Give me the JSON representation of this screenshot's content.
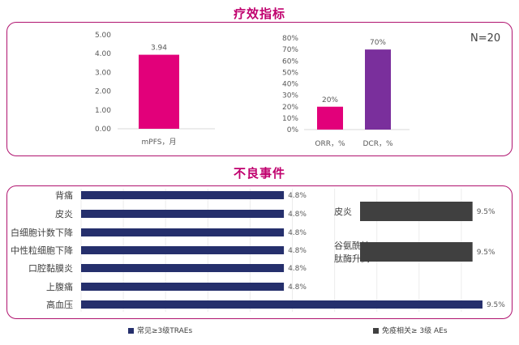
{
  "titles": {
    "efficacy": "疗效指标",
    "adverse": "不良事件"
  },
  "n_label": "N=20",
  "colors": {
    "pink": "#e2007a",
    "purple": "#7a2f9c",
    "navy": "#252f6c",
    "dark": "#404040",
    "accent": "#c0006e"
  },
  "chart_data": [
    {
      "type": "bar",
      "categories": [
        "mPFS，月"
      ],
      "values": [
        3.94
      ],
      "value_labels": [
        "3.94"
      ],
      "yticks": [
        "5.00",
        "4.00",
        "3.00",
        "2.00",
        "1.00",
        "0.00"
      ],
      "ylim": [
        0,
        5
      ]
    },
    {
      "type": "bar",
      "categories": [
        "ORR，%",
        "DCR，%"
      ],
      "values": [
        20,
        70
      ],
      "value_labels": [
        "20%",
        "70%"
      ],
      "yticks": [
        "80%",
        "70%",
        "60%",
        "50%",
        "40%",
        "30%",
        "20%",
        "10%",
        "0%"
      ],
      "ylim": [
        0,
        80
      ]
    },
    {
      "type": "bar",
      "orientation": "horizontal",
      "legend": "常见≥3级TRAEs",
      "categories": [
        "背痛",
        "皮炎",
        "白细胞计数下降",
        "中性粒细胞下降",
        "口腔黏膜炎",
        "上腹痛",
        "高血压"
      ],
      "values": [
        4.8,
        4.8,
        4.8,
        4.8,
        4.8,
        4.8,
        9.5
      ],
      "value_labels": [
        "4.8%",
        "4.8%",
        "4.8%",
        "4.8%",
        "4.8%",
        "4.8%",
        "9.5%"
      ]
    },
    {
      "type": "bar",
      "orientation": "horizontal",
      "legend": "免疫相关≥ 3级 AEs",
      "categories": [
        [
          "皮炎"
        ],
        [
          "谷氨酰转",
          "肽酶升高"
        ]
      ],
      "values": [
        9.5,
        9.5
      ],
      "value_labels": [
        "9.5%",
        "9.5%"
      ]
    }
  ]
}
